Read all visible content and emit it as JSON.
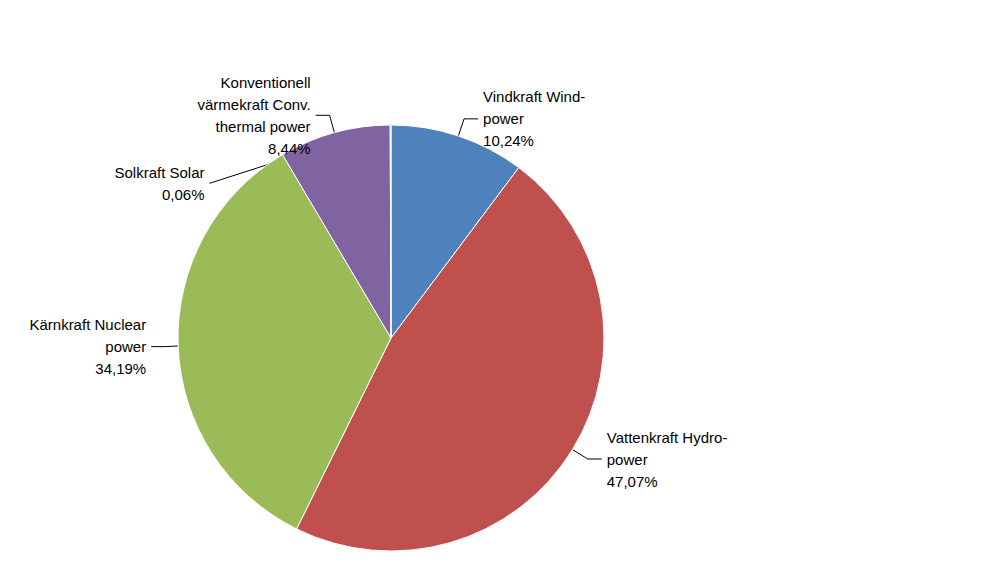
{
  "chart_data": {
    "type": "pie",
    "categories": [
      "Vindkraft Wind-\npower",
      "Vattenkraft Hydro-\npower",
      "Kärnkraft Nuclear\npower",
      "Konventionell\nvärmekraft Conv.\nthermal power",
      "Solkraft Solar"
    ],
    "values": [
      10.24,
      47.07,
      34.19,
      8.44,
      0.06
    ],
    "value_labels": [
      "10,24%",
      "47,07%",
      "34,19%",
      "8,44%",
      "0,06%"
    ],
    "colors": [
      "#4f81bd",
      "#c0504d",
      "#9bbb59",
      "#8064a2",
      "#4bacc6"
    ],
    "data_labels": true
  }
}
